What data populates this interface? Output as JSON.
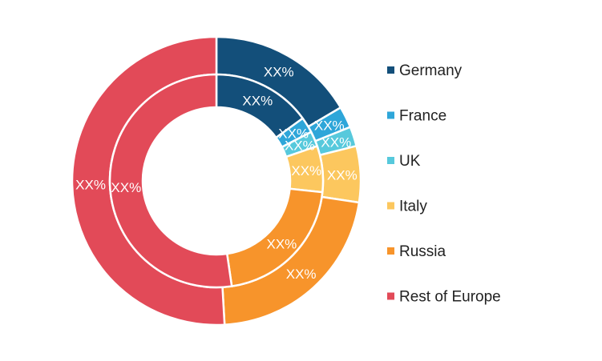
{
  "chart_data": {
    "type": "donut",
    "title": "",
    "rings": [
      {
        "name": "",
        "ring": "outer",
        "values": [
          16.5,
          2.4,
          2.2,
          6.3,
          21.7,
          50.9
        ],
        "labels": [
          "XX%",
          "XX%",
          "XX%",
          "XX%",
          "XX%",
          "XX%"
        ]
      },
      {
        "name": "",
        "ring": "inner",
        "values": [
          15.0,
          2.4,
          2.3,
          7.0,
          21.0,
          52.3
        ],
        "labels": [
          "XX%",
          "XX%",
          "XX%",
          "XX%",
          "XX%",
          "XX%"
        ]
      }
    ],
    "categories": [
      "Germany",
      "France",
      "UK",
      "Italy",
      "Russia",
      "Rest of Europe"
    ],
    "colors": [
      "#134f7a",
      "#2ea6d9",
      "#57c9dc",
      "#fcc75e",
      "#f7942b",
      "#e24a58"
    ],
    "legend_position": "right"
  }
}
